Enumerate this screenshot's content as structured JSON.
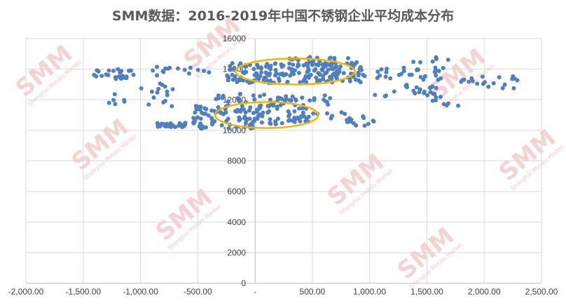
{
  "chart_data": {
    "type": "scatter",
    "title": "SMM数据：2016-2019年中国不锈钢企业平均成本分布",
    "xlabel": "",
    "ylabel": "",
    "xlim": [
      -2000,
      2500
    ],
    "ylim": [
      0,
      16000
    ],
    "x_ticks": [
      "-2,000.00",
      "-1,500.00",
      "-1,000.00",
      "-500.00",
      "-",
      "500.00",
      "1,000.00",
      "1,500.00",
      "2,000.00",
      "2,500.00"
    ],
    "y_ticks": [
      "0",
      "2000",
      "4000",
      "6000",
      "8000",
      "10000",
      "12000",
      "14000",
      "16000"
    ],
    "grid": "vertical and horizontal",
    "legend": "none",
    "colors": {
      "points": "#4f7fbf",
      "highlight_ellipse": "#f5b400",
      "grid": "#d9d9d9",
      "axis": "#bfbfbf",
      "title": "#595959",
      "watermark": "#f2c9c9"
    },
    "watermark": "SMM Shanghai Metals Market",
    "highlight_regions": [
      {
        "name": "",
        "cx": 350,
        "cy": 13850,
        "rx": 520,
        "ry": 850
      },
      {
        "name": "",
        "cx": 100,
        "cy": 11000,
        "rx": 450,
        "ry": 850
      }
    ],
    "clusters": [
      {
        "x": [
          -1450,
          -1050
        ],
        "y": [
          13300,
          14000
        ],
        "n": 25
      },
      {
        "x": [
          -1350,
          -1050
        ],
        "y": [
          11700,
          12400
        ],
        "n": 6
      },
      {
        "x": [
          -1000,
          -650
        ],
        "y": [
          12300,
          13100
        ],
        "n": 10
      },
      {
        "x": [
          -900,
          -400
        ],
        "y": [
          13400,
          14200
        ],
        "n": 15
      },
      {
        "x": [
          -250,
          950
        ],
        "y": [
          13100,
          14400
        ],
        "n": 190
      },
      {
        "x": [
          250,
          950
        ],
        "y": [
          14300,
          14800
        ],
        "n": 25
      },
      {
        "x": [
          950,
          1650
        ],
        "y": [
          13300,
          14100
        ],
        "n": 30
      },
      {
        "x": [
          1300,
          1700
        ],
        "y": [
          14300,
          14800
        ],
        "n": 6
      },
      {
        "x": [
          1750,
          2300
        ],
        "y": [
          12700,
          13600
        ],
        "n": 20
      },
      {
        "x": [
          1000,
          1600
        ],
        "y": [
          12200,
          13000
        ],
        "n": 22
      },
      {
        "x": [
          1550,
          1800
        ],
        "y": [
          11600,
          12300
        ],
        "n": 8
      },
      {
        "x": [
          -550,
          450
        ],
        "y": [
          10400,
          11700
        ],
        "n": 110
      },
      {
        "x": [
          -350,
          700
        ],
        "y": [
          11600,
          12400
        ],
        "n": 45
      },
      {
        "x": [
          400,
          1000
        ],
        "y": [
          10500,
          11200
        ],
        "n": 18
      },
      {
        "x": [
          -900,
          -600
        ],
        "y": [
          10200,
          10500
        ],
        "n": 30
      },
      {
        "x": [
          -500,
          0
        ],
        "y": [
          10100,
          10400
        ],
        "n": 18
      },
      {
        "x": [
          800,
          1050
        ],
        "y": [
          10300,
          10700
        ],
        "n": 8
      },
      {
        "x": [
          -1000,
          -600
        ],
        "y": [
          11500,
          12200
        ],
        "n": 5
      }
    ]
  }
}
